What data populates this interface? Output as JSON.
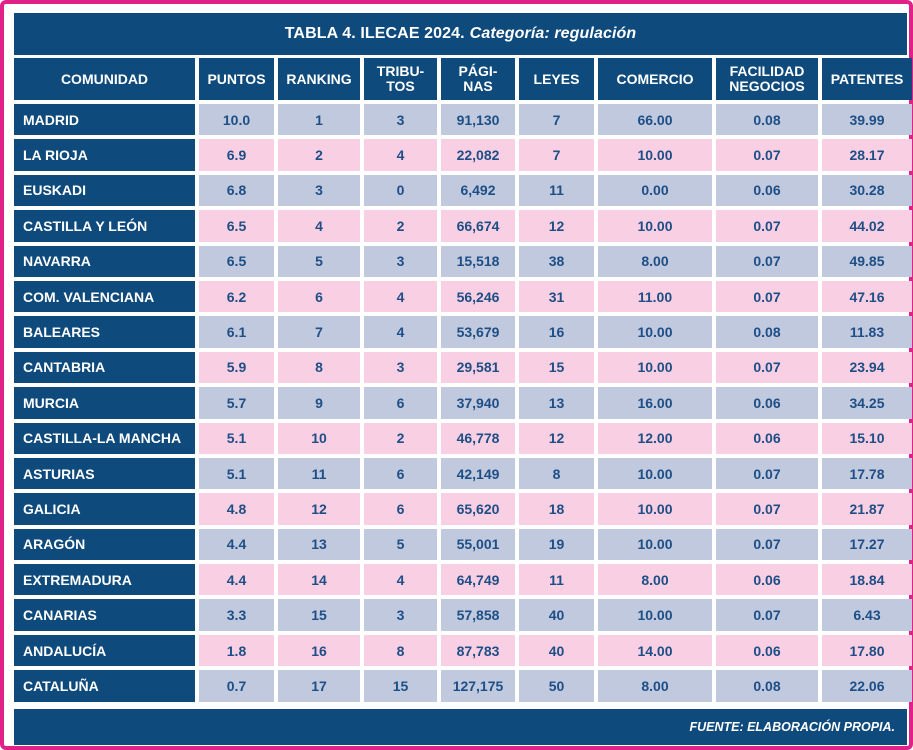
{
  "title": {
    "main": "TABLA 4. ILECAE 2024.",
    "category": "Categoría: regulación"
  },
  "headers": [
    "COMUNIDAD",
    "PUNTOS",
    "RANKING",
    "TRIBU-\nTOS",
    "PÁGI-\nNAS",
    "LEYES",
    "COMERCIO",
    "FACILIDAD\nNEGOCIOS",
    "PATENTES"
  ],
  "rows": [
    [
      "MADRID",
      "10.0",
      "1",
      "3",
      "91,130",
      "7",
      "66.00",
      "0.08",
      "39.99"
    ],
    [
      "LA RIOJA",
      "6.9",
      "2",
      "4",
      "22,082",
      "7",
      "10.00",
      "0.07",
      "28.17"
    ],
    [
      "EUSKADI",
      "6.8",
      "3",
      "0",
      "6,492",
      "11",
      "0.00",
      "0.06",
      "30.28"
    ],
    [
      "CASTILLA Y LEÓN",
      "6.5",
      "4",
      "2",
      "66,674",
      "12",
      "10.00",
      "0.07",
      "44.02"
    ],
    [
      "NAVARRA",
      "6.5",
      "5",
      "3",
      "15,518",
      "38",
      "8.00",
      "0.07",
      "49.85"
    ],
    [
      "COM. VALENCIANA",
      "6.2",
      "6",
      "4",
      "56,246",
      "31",
      "11.00",
      "0.07",
      "47.16"
    ],
    [
      "BALEARES",
      "6.1",
      "7",
      "4",
      "53,679",
      "16",
      "10.00",
      "0.08",
      "11.83"
    ],
    [
      "CANTABRIA",
      "5.9",
      "8",
      "3",
      "29,581",
      "15",
      "10.00",
      "0.07",
      "23.94"
    ],
    [
      "MURCIA",
      "5.7",
      "9",
      "6",
      "37,940",
      "13",
      "16.00",
      "0.06",
      "34.25"
    ],
    [
      "CASTILLA-LA MANCHA",
      "5.1",
      "10",
      "2",
      "46,778",
      "12",
      "12.00",
      "0.06",
      "15.10"
    ],
    [
      "ASTURIAS",
      "5.1",
      "11",
      "6",
      "42,149",
      "8",
      "10.00",
      "0.07",
      "17.78"
    ],
    [
      "GALICIA",
      "4.8",
      "12",
      "6",
      "65,620",
      "18",
      "10.00",
      "0.07",
      "21.87"
    ],
    [
      "ARAGÓN",
      "4.4",
      "13",
      "5",
      "55,001",
      "19",
      "10.00",
      "0.07",
      "17.27"
    ],
    [
      "EXTREMADURA",
      "4.4",
      "14",
      "4",
      "64,749",
      "11",
      "8.00",
      "0.06",
      "18.84"
    ],
    [
      "CANARIAS",
      "3.3",
      "15",
      "3",
      "57,858",
      "40",
      "10.00",
      "0.07",
      "6.43"
    ],
    [
      "ANDALUCÍA",
      "1.8",
      "16",
      "8",
      "87,783",
      "40",
      "14.00",
      "0.06",
      "17.80"
    ],
    [
      "CATALUÑA",
      "0.7",
      "17",
      "15",
      "127,175",
      "50",
      "8.00",
      "0.08",
      "22.06"
    ]
  ],
  "footer": "FUENTE: ELABORACIÓN PROPIA.",
  "colors": {
    "border": "#e0218a",
    "header_bg": "#0f4a7c",
    "row_blue": "#c1c9df",
    "row_pink": "#f9cfe3",
    "cell_text": "#1d4f86"
  }
}
